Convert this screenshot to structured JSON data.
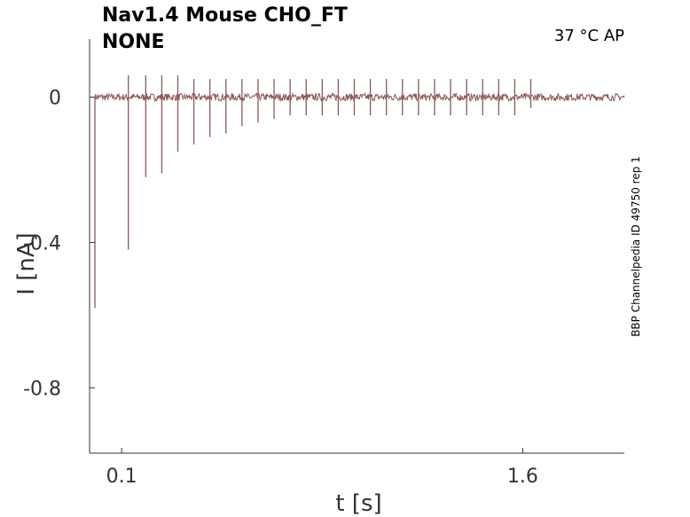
{
  "title_line1": "Nav1.4  Mouse  CHO_FT",
  "title_line2": "NONE",
  "conditions": "37 °C  AP",
  "side_note": "BBP Channelpedia ID 49750 rep 1",
  "chart_data": {
    "type": "line",
    "xlabel": "t [s]",
    "ylabel": "I [nA]",
    "xlim": [
      -0.02,
      1.98
    ],
    "ylim": [
      -0.98,
      0.16
    ],
    "xticks": [
      {
        "value": 0.1,
        "label": "0.1"
      },
      {
        "value": 1.6,
        "label": "1.6"
      }
    ],
    "yticks": [
      {
        "value": 0,
        "label": "0"
      },
      {
        "value": -0.4,
        "label": "-0.4"
      },
      {
        "value": -0.8,
        "label": "-0.8"
      }
    ],
    "line_color": "#8b5a5a",
    "series": [
      {
        "values_description": "baseline near 0 nA with transient spikes",
        "spikes": [
          {
            "t": 0.0,
            "min": -0.58,
            "max": 0.0
          },
          {
            "t": 0.125,
            "min": -0.42,
            "max": 0.06
          },
          {
            "t": 0.19,
            "min": -0.22,
            "max": 0.06
          },
          {
            "t": 0.25,
            "min": -0.21,
            "max": 0.06
          },
          {
            "t": 0.31,
            "min": -0.15,
            "max": 0.06
          },
          {
            "t": 0.37,
            "min": -0.13,
            "max": 0.05
          },
          {
            "t": 0.43,
            "min": -0.11,
            "max": 0.05
          },
          {
            "t": 0.49,
            "min": -0.1,
            "max": 0.05
          },
          {
            "t": 0.55,
            "min": -0.08,
            "max": 0.05
          },
          {
            "t": 0.61,
            "min": -0.07,
            "max": 0.05
          },
          {
            "t": 0.67,
            "min": -0.06,
            "max": 0.05
          },
          {
            "t": 0.73,
            "min": -0.05,
            "max": 0.05
          },
          {
            "t": 0.79,
            "min": -0.05,
            "max": 0.05
          },
          {
            "t": 0.85,
            "min": -0.05,
            "max": 0.05
          },
          {
            "t": 0.91,
            "min": -0.05,
            "max": 0.05
          },
          {
            "t": 0.97,
            "min": -0.05,
            "max": 0.05
          },
          {
            "t": 1.03,
            "min": -0.05,
            "max": 0.05
          },
          {
            "t": 1.09,
            "min": -0.05,
            "max": 0.05
          },
          {
            "t": 1.15,
            "min": -0.05,
            "max": 0.05
          },
          {
            "t": 1.21,
            "min": -0.05,
            "max": 0.05
          },
          {
            "t": 1.27,
            "min": -0.05,
            "max": 0.05
          },
          {
            "t": 1.33,
            "min": -0.05,
            "max": 0.05
          },
          {
            "t": 1.39,
            "min": -0.05,
            "max": 0.05
          },
          {
            "t": 1.45,
            "min": -0.05,
            "max": 0.05
          },
          {
            "t": 1.51,
            "min": -0.05,
            "max": 0.05
          },
          {
            "t": 1.57,
            "min": -0.05,
            "max": 0.05
          },
          {
            "t": 1.63,
            "min": -0.03,
            "max": 0.05
          }
        ],
        "baseline": 0,
        "noise_amplitude": 0.01,
        "t_end": 1.98
      }
    ]
  }
}
